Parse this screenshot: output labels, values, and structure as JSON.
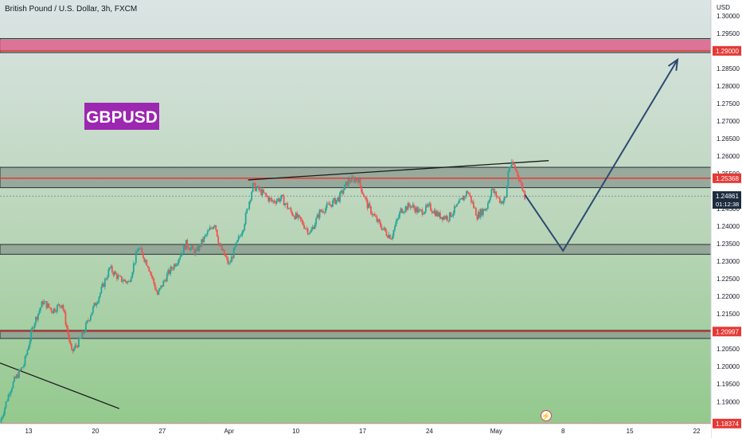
{
  "header": {
    "symbol_title": "British Pound / U.S. Dollar, 3h, FXCM"
  },
  "watermark": {
    "label": "GBPUSD",
    "color": "#9c27b0"
  },
  "axis": {
    "currency": "USD",
    "y_ticks": [
      "1.30000",
      "1.29500",
      "1.28500",
      "1.28000",
      "1.27500",
      "1.27000",
      "1.26500",
      "1.26000",
      "1.25500",
      "1.24500",
      "1.24000",
      "1.23500",
      "1.23000",
      "1.22500",
      "1.22000",
      "1.21500",
      "1.21000",
      "1.20500",
      "1.20000",
      "1.19500",
      "1.19000"
    ],
    "y_tick_values": [
      1.3,
      1.295,
      1.285,
      1.28,
      1.275,
      1.27,
      1.265,
      1.26,
      1.255,
      1.245,
      1.24,
      1.235,
      1.23,
      1.225,
      1.22,
      1.215,
      1.21,
      1.205,
      1.2,
      1.195,
      1.19
    ],
    "x_ticks": [
      "13",
      "20",
      "27",
      "Apr",
      "10",
      "17",
      "24",
      "May",
      "8",
      "15",
      "22"
    ],
    "x_tick_days": [
      13,
      20,
      27,
      34,
      41,
      48,
      55,
      62,
      69,
      76,
      83
    ]
  },
  "price_labels": {
    "resistance_top": "1.29000",
    "resistance_mid": "1.25368",
    "current_price": "1.24861",
    "countdown": "01:12:38",
    "support_mid": "1.20997",
    "support_bottom": "1.18374"
  },
  "colors": {
    "bull": "#26a69a",
    "bear": "#ef5350",
    "level_line": "#e53935",
    "zone_fill": "#8a9a8f",
    "projection": "#2c4a6e",
    "current_price_bg": "#1c2b3d"
  },
  "chart_data": {
    "type": "candlestick",
    "title": "British Pound / U.S. Dollar, 3h, FXCM",
    "instrument": "GBPUSD",
    "timeframe": "3h",
    "y_unit": "USD",
    "ylim": [
      1.1837,
      1.3045
    ],
    "xlim_day": [
      10.0,
      84.5
    ],
    "x_axis": "calendar day (Mar 13 = 13, Apr 10 = 41, May 1 = 62)",
    "close_path": [
      {
        "day": 10.0,
        "close": 1.184
      },
      {
        "day": 11.0,
        "close": 1.193
      },
      {
        "day": 11.5,
        "close": 1.196
      },
      {
        "day": 12.5,
        "close": 1.2005
      },
      {
        "day": 13.5,
        "close": 1.212
      },
      {
        "day": 14.5,
        "close": 1.2185
      },
      {
        "day": 15.5,
        "close": 1.216
      },
      {
        "day": 16.5,
        "close": 1.218
      },
      {
        "day": 17.5,
        "close": 1.204
      },
      {
        "day": 18.5,
        "close": 1.208
      },
      {
        "day": 19.5,
        "close": 1.215
      },
      {
        "day": 20.5,
        "close": 1.221
      },
      {
        "day": 21.5,
        "close": 1.228
      },
      {
        "day": 22.5,
        "close": 1.225
      },
      {
        "day": 23.5,
        "close": 1.224
      },
      {
        "day": 24.5,
        "close": 1.234
      },
      {
        "day": 25.5,
        "close": 1.229
      },
      {
        "day": 26.5,
        "close": 1.2205
      },
      {
        "day": 27.5,
        "close": 1.226
      },
      {
        "day": 28.5,
        "close": 1.23
      },
      {
        "day": 29.5,
        "close": 1.235
      },
      {
        "day": 30.5,
        "close": 1.2325
      },
      {
        "day": 31.5,
        "close": 1.237
      },
      {
        "day": 32.5,
        "close": 1.241
      },
      {
        "day": 33.0,
        "close": 1.2345
      },
      {
        "day": 34.0,
        "close": 1.229
      },
      {
        "day": 35.5,
        "close": 1.24
      },
      {
        "day": 36.5,
        "close": 1.2515
      },
      {
        "day": 37.5,
        "close": 1.2495
      },
      {
        "day": 38.5,
        "close": 1.247
      },
      {
        "day": 39.5,
        "close": 1.248
      },
      {
        "day": 40.5,
        "close": 1.244
      },
      {
        "day": 41.5,
        "close": 1.2415
      },
      {
        "day": 42.5,
        "close": 1.238
      },
      {
        "day": 43.5,
        "close": 1.244
      },
      {
        "day": 44.5,
        "close": 1.246
      },
      {
        "day": 45.5,
        "close": 1.248
      },
      {
        "day": 46.5,
        "close": 1.253
      },
      {
        "day": 47.5,
        "close": 1.2535
      },
      {
        "day": 48.5,
        "close": 1.246
      },
      {
        "day": 49.5,
        "close": 1.2415
      },
      {
        "day": 50.5,
        "close": 1.238
      },
      {
        "day": 51.0,
        "close": 1.237
      },
      {
        "day": 52.0,
        "close": 1.2445
      },
      {
        "day": 53.0,
        "close": 1.246
      },
      {
        "day": 54.0,
        "close": 1.244
      },
      {
        "day": 55.0,
        "close": 1.2455
      },
      {
        "day": 56.0,
        "close": 1.243
      },
      {
        "day": 57.0,
        "close": 1.2425
      },
      {
        "day": 58.0,
        "close": 1.246
      },
      {
        "day": 59.0,
        "close": 1.25
      },
      {
        "day": 60.0,
        "close": 1.243
      },
      {
        "day": 61.0,
        "close": 1.2455
      },
      {
        "day": 61.5,
        "close": 1.2505
      },
      {
        "day": 62.5,
        "close": 1.247
      },
      {
        "day": 63.0,
        "close": 1.248
      },
      {
        "day": 63.3,
        "close": 1.257
      },
      {
        "day": 63.8,
        "close": 1.2575
      },
      {
        "day": 64.3,
        "close": 1.2545
      },
      {
        "day": 65.0,
        "close": 1.2486
      }
    ],
    "resistance_top": 1.29,
    "resistance_mid": 1.25368,
    "support_mid": 1.20997,
    "support_bottom": 1.18374,
    "current_price": 1.24861,
    "zones": [
      {
        "from": 1.2895,
        "to": 1.2935
      },
      {
        "from": 1.251,
        "to": 1.2568
      },
      {
        "from": 1.232,
        "to": 1.2348
      },
      {
        "from": 1.208,
        "to": 1.2103
      }
    ],
    "trendlines": [
      {
        "from": {
          "day": 36.0,
          "price": 1.2532
        },
        "to": {
          "day": 67.5,
          "price": 1.2587
        }
      },
      {
        "from": {
          "day": 10.0,
          "price": 1.201
        },
        "to": {
          "day": 22.5,
          "price": 1.188
        }
      }
    ],
    "projection": [
      {
        "day": 65.0,
        "price": 1.249
      },
      {
        "day": 69.0,
        "price": 1.233
      },
      {
        "day": 81.0,
        "price": 1.2875
      }
    ],
    "grid": false,
    "legend": "none"
  }
}
